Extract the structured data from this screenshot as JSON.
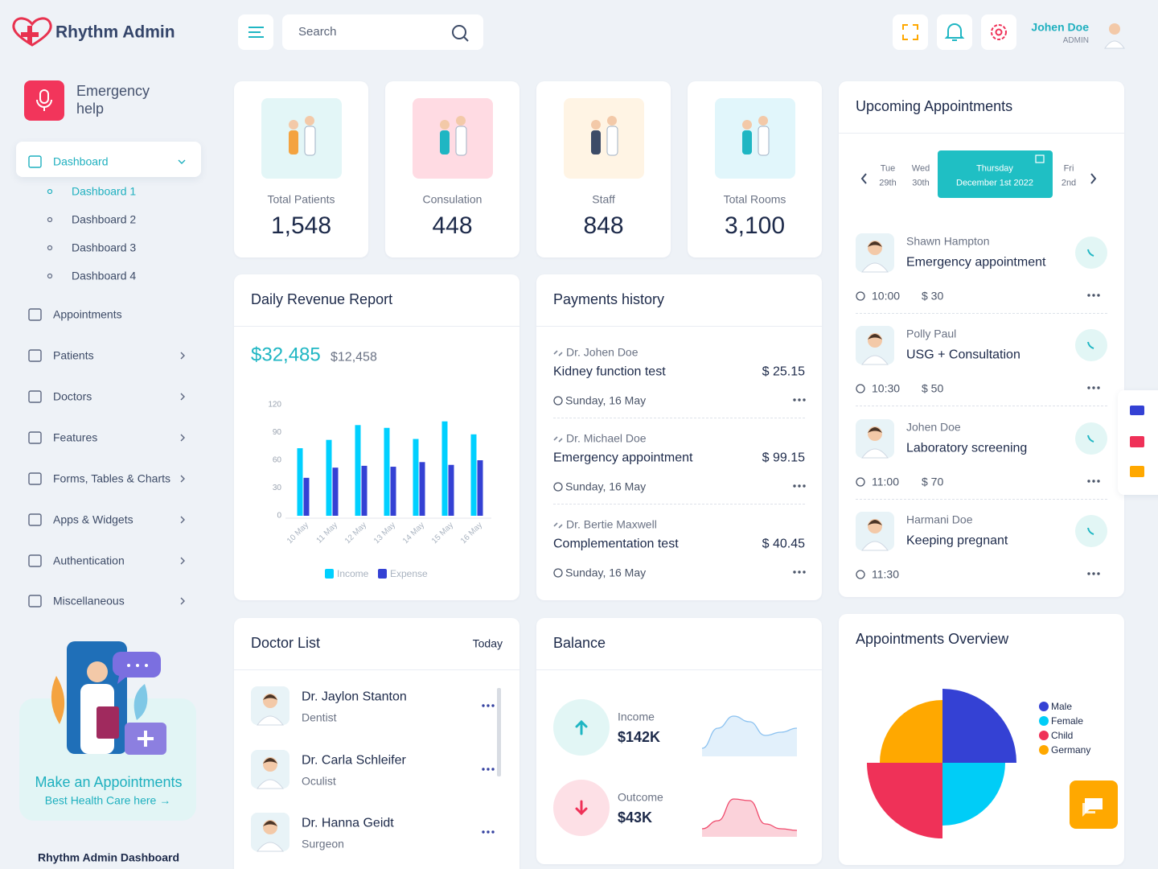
{
  "header": {
    "logo": "Rhythm Admin",
    "search": "Search",
    "user": {
      "name": "Johen Doe",
      "role": "ADMIN"
    }
  },
  "sidebar": {
    "emergency": "Emergency help",
    "menu": [
      {
        "label": "Dashboard",
        "has_submenu": true,
        "children": [
          "Dashboard 1",
          "Dashboard 2",
          "Dashboard 3",
          "Dashboard 4"
        ]
      },
      {
        "label": "Appointments",
        "has_submenu": false
      },
      {
        "label": "Patients",
        "has_submenu": true
      },
      {
        "label": "Doctors",
        "has_submenu": true
      },
      {
        "label": "Features",
        "has_submenu": true
      },
      {
        "label": "Forms, Tables & Charts",
        "has_submenu": true
      },
      {
        "label": "Apps & Widgets",
        "has_submenu": true
      },
      {
        "label": "Authentication",
        "has_submenu": true
      },
      {
        "label": "Miscellaneous",
        "has_submenu": true
      }
    ],
    "promo": {
      "title": "Make an Appointments",
      "link": "Best Health Care here →"
    },
    "footer": "Rhythm Admin Dashboard"
  },
  "stats": [
    {
      "label": "Total Patients",
      "value": "1,548"
    },
    {
      "label": "Consulation",
      "value": "448"
    },
    {
      "label": "Staff",
      "value": "848"
    },
    {
      "label": "Total Rooms",
      "value": "3,100"
    }
  ],
  "revenue": {
    "title": "Daily Revenue Report",
    "total": "$32,485",
    "previous": "$12,458",
    "chart": {
      "type": "bar",
      "categories": [
        "10 May",
        "11 May",
        "12 May",
        "13 May",
        "14 May",
        "15 May",
        "16 May"
      ],
      "series": [
        {
          "name": "Income",
          "color": "#00d0ff",
          "values": [
            73,
            82,
            98,
            95,
            83,
            102,
            88
          ]
        },
        {
          "name": "Expense",
          "color": "#3441d4",
          "values": [
            41,
            52,
            54,
            53,
            58,
            55,
            60
          ]
        }
      ],
      "ylim": [
        0,
        120
      ],
      "yticks": [
        0,
        30,
        60,
        90,
        120
      ],
      "grid": false,
      "legend": "bottom"
    }
  },
  "payments": {
    "title": "Payments history",
    "items": [
      {
        "doctor": "Dr. Johen Doe",
        "test": "Kidney function test",
        "amount": "$ 25.15",
        "date": "Sunday, 16 May"
      },
      {
        "doctor": "Dr. Michael Doe",
        "test": "Emergency appointment",
        "amount": "$ 99.15",
        "date": "Sunday, 16 May"
      },
      {
        "doctor": "Dr. Bertie Maxwell",
        "test": "Complementation test",
        "amount": "$ 40.45",
        "date": "Sunday, 16 May"
      }
    ]
  },
  "appointments": {
    "title": "Upcoming Appointments",
    "calendar": [
      {
        "day": "Tue",
        "date": "29th",
        "active": false
      },
      {
        "day": "Wed",
        "date": "30th",
        "active": false
      },
      {
        "day": "Thursday",
        "date": "December 1st 2022",
        "active": true
      },
      {
        "day": "Fri",
        "date": "2nd",
        "active": false
      }
    ],
    "items": [
      {
        "name": "Shawn Hampton",
        "type": "Emergency appointment",
        "time": "10:00",
        "price": "$ 30"
      },
      {
        "name": "Polly Paul",
        "type": "USG + Consultation",
        "time": "10:30",
        "price": "$ 50"
      },
      {
        "name": "Johen Doe",
        "type": "Laboratory screening",
        "time": "11:00",
        "price": "$ 70"
      },
      {
        "name": "Harmani Doe",
        "type": "Keeping pregnant",
        "time": "11:30"
      }
    ]
  },
  "doctors": {
    "title": "Doctor List",
    "filter": "Today",
    "items": [
      {
        "name": "Dr. Jaylon Stanton",
        "specialty": "Dentist"
      },
      {
        "name": "Dr. Carla Schleifer",
        "specialty": "Oculist"
      },
      {
        "name": "Dr. Hanna Geidt",
        "specialty": "Surgeon"
      }
    ]
  },
  "balance": {
    "title": "Balance",
    "items": [
      {
        "label": "Income",
        "amount": "$142K",
        "trend": "up",
        "color": "#8cc2f0",
        "values": [
          10,
          35,
          50,
          43,
          26,
          30,
          35
        ]
      },
      {
        "label": "Outcome",
        "amount": "$43K",
        "trend": "down",
        "color": "#ef4a6c",
        "values": [
          10,
          20,
          47,
          45,
          16,
          10,
          8
        ]
      }
    ]
  },
  "overview": {
    "title": "Appointments Overview",
    "chart": {
      "type": "polarArea",
      "categories": [
        "Male",
        "Female",
        "Child",
        "Germany"
      ],
      "values": [
        92,
        78,
        94,
        78
      ],
      "colors": [
        "#3441d4",
        "#00cdf7",
        "#ef3158",
        "#ffa800"
      ],
      "legend": "right"
    }
  }
}
